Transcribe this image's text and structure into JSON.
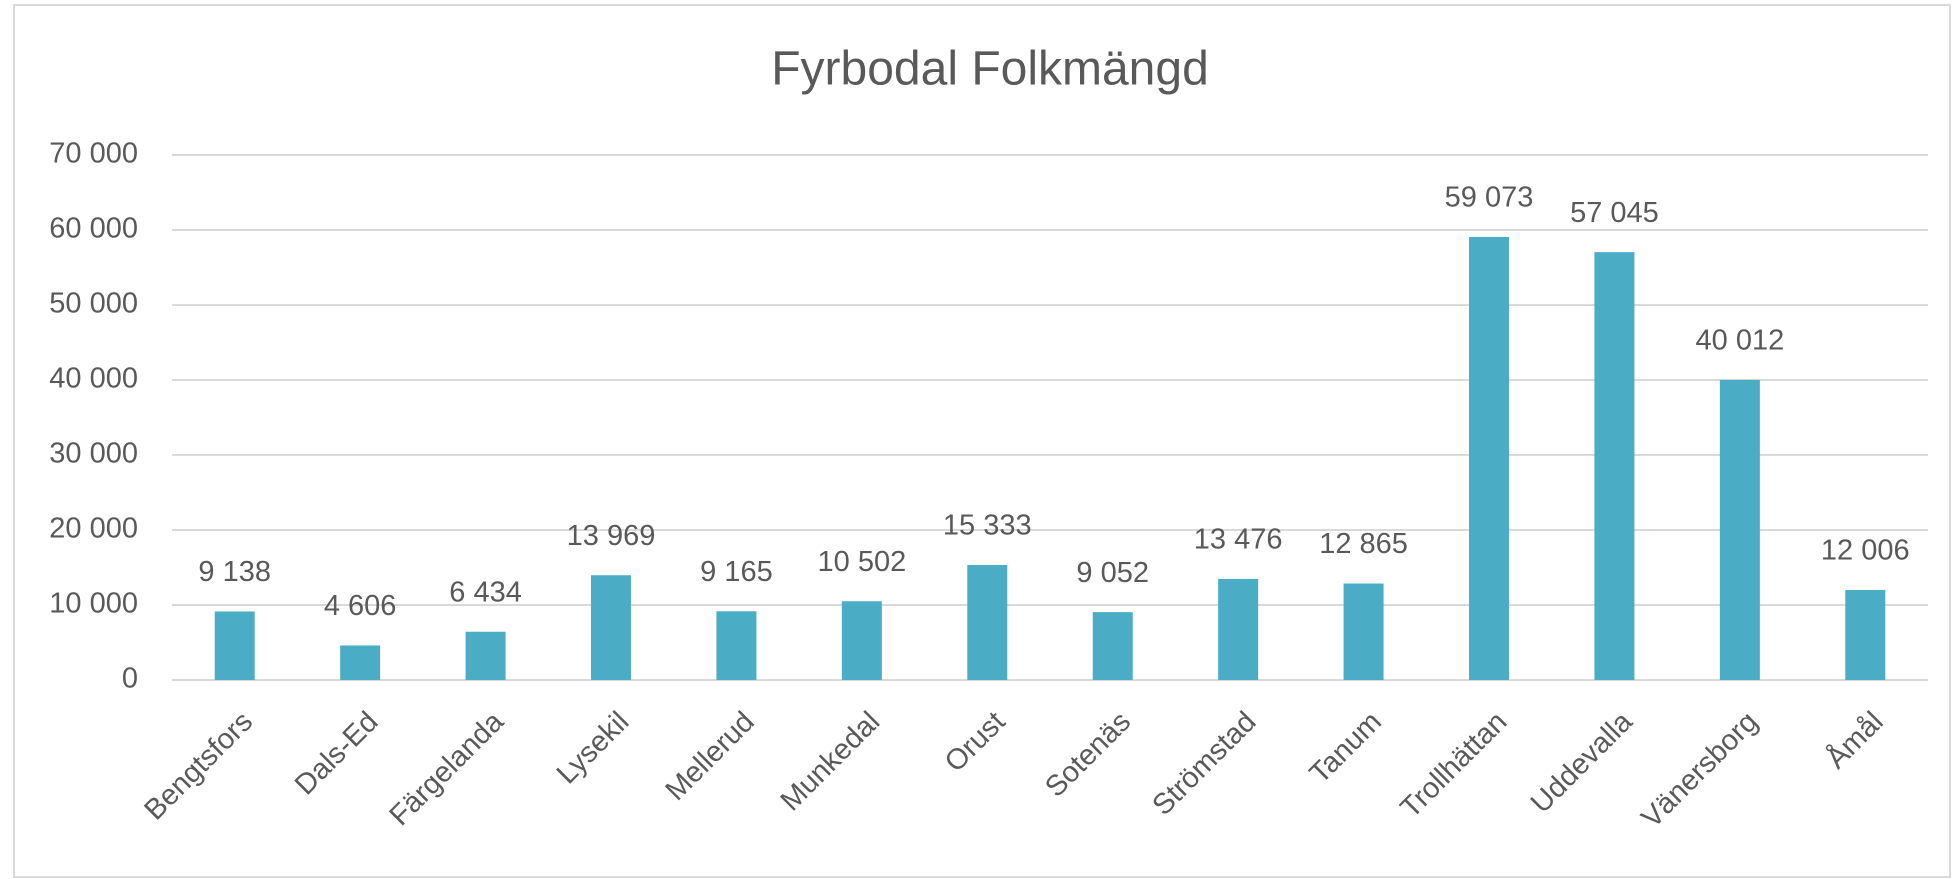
{
  "chart_data": {
    "type": "bar",
    "title": "Fyrbodal Folkmängd",
    "categories": [
      "Bengtsfors",
      "Dals-Ed",
      "Färgelanda",
      "Lysekil",
      "Mellerud",
      "Munkedal",
      "Orust",
      "Sotenäs",
      "Strömstad",
      "Tanum",
      "Trollhättan",
      "Uddevalla",
      "Vänersborg",
      "Åmål"
    ],
    "values": [
      9138,
      4606,
      6434,
      13969,
      9165,
      10502,
      15333,
      9052,
      13476,
      12865,
      59073,
      57045,
      40012,
      12006
    ],
    "value_labels": [
      "9 138",
      "4 606",
      "6 434",
      "13 969",
      "9 165",
      "10 502",
      "15 333",
      "9 052",
      "13 476",
      "12 865",
      "59 073",
      "57 045",
      "40 012",
      "12 006"
    ],
    "color": "#4bacc6",
    "ylim": [
      0,
      70000
    ],
    "yticks": [
      0,
      {
        "value": 10000,
        "label": "10 000"
      },
      {
        "value": 20000,
        "label": "20 000"
      },
      {
        "value": 30000,
        "label": "30 000"
      },
      {
        "value": 40000,
        "label": "40 000"
      },
      {
        "value": 50000,
        "label": "50 000"
      },
      {
        "value": 60000,
        "label": "60 000"
      },
      {
        "value": 70000,
        "label": "70 000"
      }
    ],
    "grid": true
  }
}
